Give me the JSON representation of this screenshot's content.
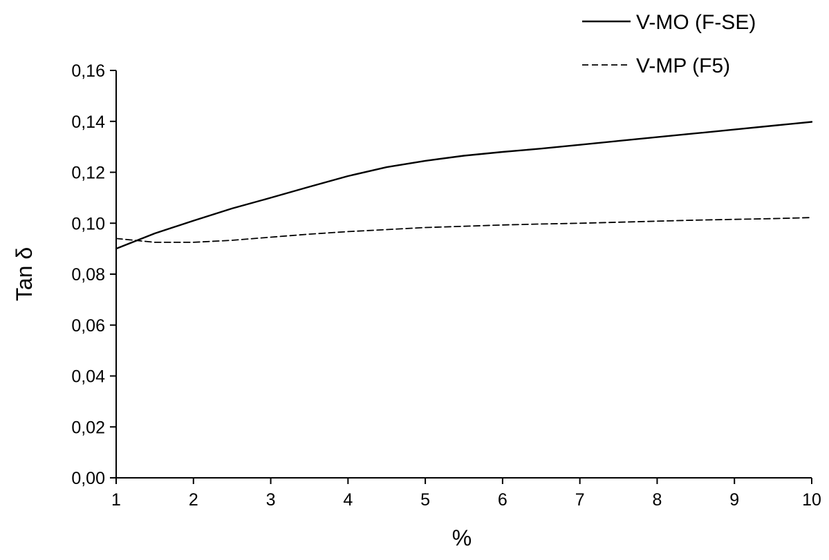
{
  "chart_data": {
    "type": "line",
    "title": "",
    "xlabel": "%",
    "ylabel": "Tan δ",
    "xlim": [
      1,
      10
    ],
    "ylim": [
      0,
      0.16
    ],
    "x_ticks": [
      1,
      2,
      3,
      4,
      5,
      6,
      7,
      8,
      9,
      10
    ],
    "x_tick_labels": [
      "1",
      "2",
      "3",
      "4",
      "5",
      "6",
      "7",
      "8",
      "9",
      "10"
    ],
    "y_ticks": [
      0,
      0.02,
      0.04,
      0.06,
      0.08,
      0.1,
      0.12,
      0.14,
      0.16
    ],
    "y_tick_labels": [
      "0,00",
      "0,02",
      "0,04",
      "0,06",
      "0,08",
      "0,10",
      "0,12",
      "0,14",
      "0,16"
    ],
    "grid": false,
    "legend_position": "top-right",
    "series": [
      {
        "name": "V-MO (F-SE)",
        "style": "solid",
        "color": "#000000",
        "x": [
          1,
          1.5,
          2,
          2.5,
          3,
          3.5,
          4,
          4.5,
          5,
          5.5,
          6,
          6.5,
          7,
          7.5,
          8,
          8.5,
          9,
          9.5,
          10
        ],
        "y": [
          0.09,
          0.096,
          0.101,
          0.1058,
          0.11,
          0.1143,
          0.1185,
          0.122,
          0.1245,
          0.1265,
          0.128,
          0.1293,
          0.1308,
          0.1323,
          0.1338,
          0.1353,
          0.1368,
          0.1383,
          0.1398
        ]
      },
      {
        "name": "V-MP (F5)",
        "style": "dashed",
        "color": "#000000",
        "x": [
          1,
          1.5,
          2,
          2.5,
          3,
          3.5,
          4,
          4.5,
          5,
          5.5,
          6,
          6.5,
          7,
          7.5,
          8,
          8.5,
          9,
          9.5,
          10
        ],
        "y": [
          0.094,
          0.0925,
          0.0925,
          0.0933,
          0.0945,
          0.0957,
          0.0967,
          0.0975,
          0.0983,
          0.0988,
          0.0993,
          0.0997,
          0.1,
          0.1004,
          0.1008,
          0.1012,
          0.1015,
          0.1018,
          0.1022
        ]
      }
    ]
  }
}
